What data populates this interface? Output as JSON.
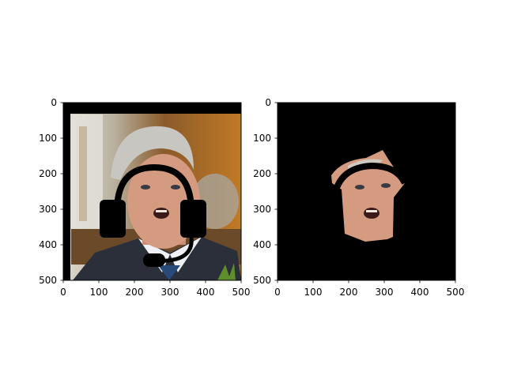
{
  "chart_data": [
    {
      "type": "image",
      "title": "",
      "xlim": [
        0,
        500
      ],
      "ylim": [
        500,
        0
      ],
      "xticks": [
        0,
        100,
        200,
        300,
        400,
        500
      ],
      "yticks": [
        0,
        100,
        200,
        300,
        400,
        500
      ],
      "xtick_labels": [
        "0",
        "100",
        "200",
        "300",
        "400",
        "500"
      ],
      "ytick_labels": [
        "0",
        "100",
        "200",
        "300",
        "400",
        "500"
      ],
      "content": "photo of a gray-haired man in a dark suit with a black headset with microphone drawn over his head"
    },
    {
      "type": "image",
      "title": "",
      "xlim": [
        0,
        500
      ],
      "ylim": [
        500,
        0
      ],
      "xticks": [
        0,
        100,
        200,
        300,
        400,
        500
      ],
      "yticks": [
        0,
        100,
        200,
        300,
        400,
        500
      ],
      "xtick_labels": [
        "0",
        "100",
        "200",
        "300",
        "400",
        "500"
      ],
      "ytick_labels": [
        "0",
        "100",
        "200",
        "300",
        "400",
        "500"
      ],
      "content": "segmented face region on a black background with the headset band drawn across the forehead"
    }
  ],
  "colors": {
    "axes_edge": "#000000",
    "background": "#000000",
    "skin": "#d59b80",
    "hair": "#c8c6c0",
    "suit": "#2b2f3a",
    "wood": "#a8651f"
  }
}
